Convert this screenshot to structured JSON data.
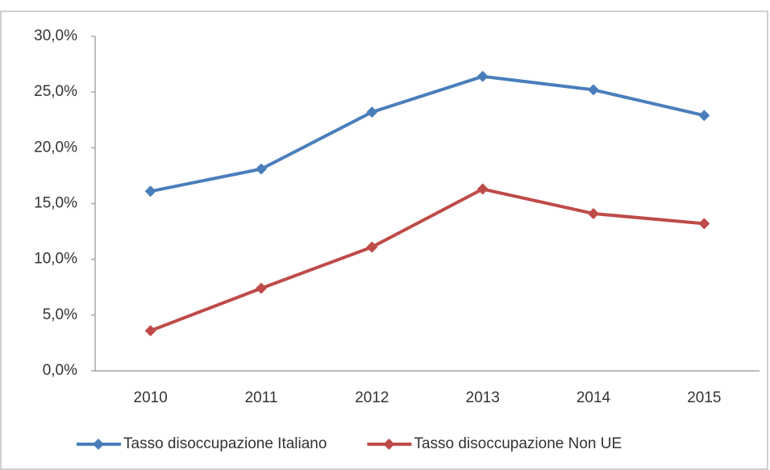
{
  "chart_data": {
    "type": "line",
    "categories": [
      "2010",
      "2011",
      "2012",
      "2013",
      "2014",
      "2015"
    ],
    "series": [
      {
        "name": "Tasso disoccupazione Italiano",
        "color": "#4a7ebb",
        "values": [
          16.1,
          18.1,
          23.2,
          26.4,
          25.2,
          22.9
        ]
      },
      {
        "name": "Tasso disoccupazione Non UE",
        "color": "#be4b48",
        "values": [
          3.6,
          7.4,
          11.1,
          16.3,
          14.1,
          13.2
        ]
      }
    ],
    "ylim": [
      0,
      30
    ],
    "yticks": [
      {
        "value": 0,
        "label": "0,0%"
      },
      {
        "value": 5,
        "label": "5,0%"
      },
      {
        "value": 10,
        "label": "10,0%"
      },
      {
        "value": 15,
        "label": "15,0%"
      },
      {
        "value": 20,
        "label": "20,0%"
      },
      {
        "value": 25,
        "label": "25,0%"
      },
      {
        "value": 30,
        "label": "30,0%"
      }
    ],
    "grid": false,
    "legend": "bottom"
  }
}
